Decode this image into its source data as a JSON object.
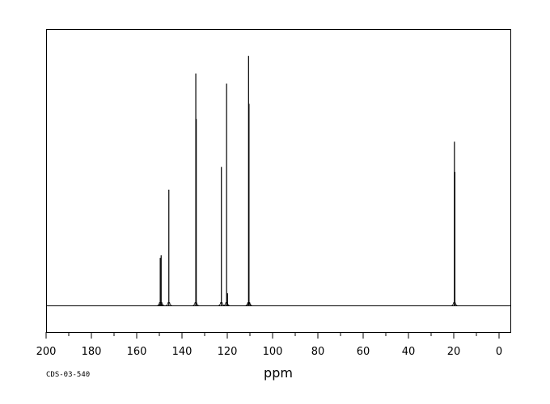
{
  "chart_data": {
    "type": "line",
    "xlabel": "ppm",
    "spectrum_code": "CDS-03-540",
    "xlim": [
      200,
      -5
    ],
    "x_ticks": [
      200,
      180,
      160,
      140,
      120,
      100,
      80,
      60,
      40,
      20,
      0
    ],
    "x_tick_labels": [
      "200",
      "180",
      "160",
      "140",
      "120",
      "100",
      "80",
      "60",
      "40",
      "20",
      "0"
    ],
    "grid": false,
    "legend": "none",
    "peaks": [
      {
        "ppm": 149.6,
        "intensity": 0.19
      },
      {
        "ppm": 149.2,
        "intensity": 0.2
      },
      {
        "ppm": 145.8,
        "intensity": 0.46
      },
      {
        "ppm": 133.9,
        "intensity": 0.92
      },
      {
        "ppm": 133.7,
        "intensity": 0.74
      },
      {
        "ppm": 122.6,
        "intensity": 0.55
      },
      {
        "ppm": 120.3,
        "intensity": 0.88
      },
      {
        "ppm": 119.9,
        "intensity": 0.05
      },
      {
        "ppm": 110.6,
        "intensity": 0.99
      },
      {
        "ppm": 110.4,
        "intensity": 0.8
      },
      {
        "ppm": 19.7,
        "intensity": 0.65
      },
      {
        "ppm": 19.5,
        "intensity": 0.53
      }
    ]
  }
}
